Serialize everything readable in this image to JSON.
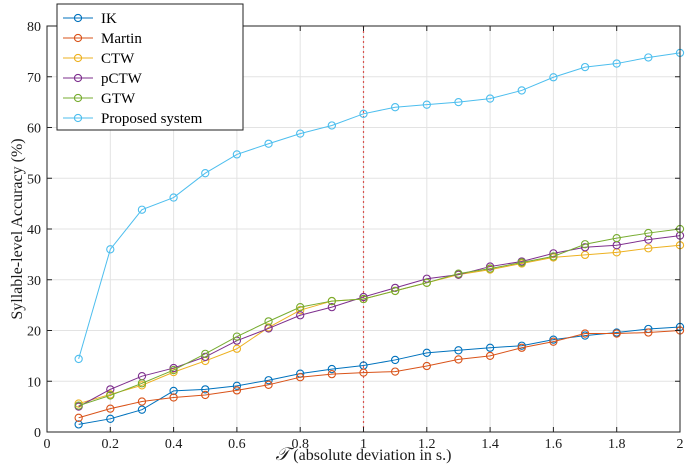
{
  "chart_data": {
    "type": "line",
    "x": [
      0.1,
      0.2,
      0.3,
      0.4,
      0.5,
      0.6,
      0.7,
      0.8,
      0.9,
      1.0,
      1.1,
      1.2,
      1.3,
      1.4,
      1.5,
      1.6,
      1.7,
      1.8,
      1.9,
      2.0
    ],
    "series": [
      {
        "name": "IK",
        "color": "#0072bd",
        "values": [
          1.5,
          2.6,
          4.4,
          8.1,
          8.4,
          9.1,
          10.2,
          11.5,
          12.4,
          13.1,
          14.2,
          15.6,
          16.1,
          16.6,
          17.0,
          18.2,
          19.0,
          19.6,
          20.3,
          20.7
        ]
      },
      {
        "name": "Martin",
        "color": "#d95319",
        "values": [
          2.8,
          4.6,
          6.0,
          6.8,
          7.3,
          8.2,
          9.3,
          10.8,
          11.4,
          11.7,
          11.9,
          13.0,
          14.3,
          15.0,
          16.6,
          17.8,
          19.4,
          19.4,
          19.6,
          20.0
        ]
      },
      {
        "name": "CTW",
        "color": "#edb120",
        "values": [
          5.6,
          7.4,
          9.2,
          11.8,
          14.0,
          16.4,
          20.6,
          24.0,
          25.8,
          26.2,
          27.8,
          29.4,
          31.0,
          32.0,
          33.2,
          34.4,
          34.9,
          35.4,
          36.2,
          36.8
        ]
      },
      {
        "name": "pCTW",
        "color": "#7e2f8e",
        "values": [
          5.0,
          8.4,
          11.0,
          12.6,
          14.8,
          18.0,
          20.4,
          23.0,
          24.6,
          26.6,
          28.4,
          30.2,
          31.0,
          32.6,
          33.6,
          35.2,
          36.4,
          36.8,
          37.9,
          38.7
        ]
      },
      {
        "name": "GTW",
        "color": "#77ac30",
        "values": [
          5.2,
          7.2,
          9.6,
          12.2,
          15.4,
          18.8,
          21.8,
          24.6,
          25.8,
          26.2,
          27.8,
          29.4,
          31.2,
          32.2,
          33.4,
          34.6,
          37.0,
          38.2,
          39.2,
          40.0
        ]
      },
      {
        "name": "Proposed system",
        "color": "#4dbeee",
        "values": [
          14.4,
          36.0,
          43.8,
          46.2,
          51.0,
          54.7,
          56.8,
          58.8,
          60.4,
          62.7,
          64.0,
          64.5,
          65.0,
          65.7,
          67.3,
          69.9,
          71.9,
          72.6,
          73.8,
          74.7
        ]
      }
    ],
    "xlabel_symbol": "𝒯",
    "xlabel": "(absolute deviation in s.)",
    "ylabel": "Syllable-level Accuracy (%)",
    "xlim": [
      0,
      2
    ],
    "ylim": [
      0,
      80
    ],
    "xticks": [
      0,
      0.2,
      0.4,
      0.6,
      0.8,
      1,
      1.2,
      1.4,
      1.6,
      1.8,
      2
    ],
    "xtick_labels": [
      "0",
      "0.2",
      "0.4",
      "0.6",
      "0.8",
      "1",
      "1.2",
      "1.4",
      "1.6",
      "1.8",
      "2"
    ],
    "yticks": [
      0,
      10,
      20,
      30,
      40,
      50,
      60,
      70,
      80
    ],
    "ytick_labels": [
      "0",
      "10",
      "20",
      "30",
      "40",
      "50",
      "60",
      "70",
      "80"
    ],
    "reference_line": {
      "x": 1,
      "color": "#d9534f",
      "style": "dotted"
    },
    "grid": true,
    "legend_position": "top-left"
  }
}
